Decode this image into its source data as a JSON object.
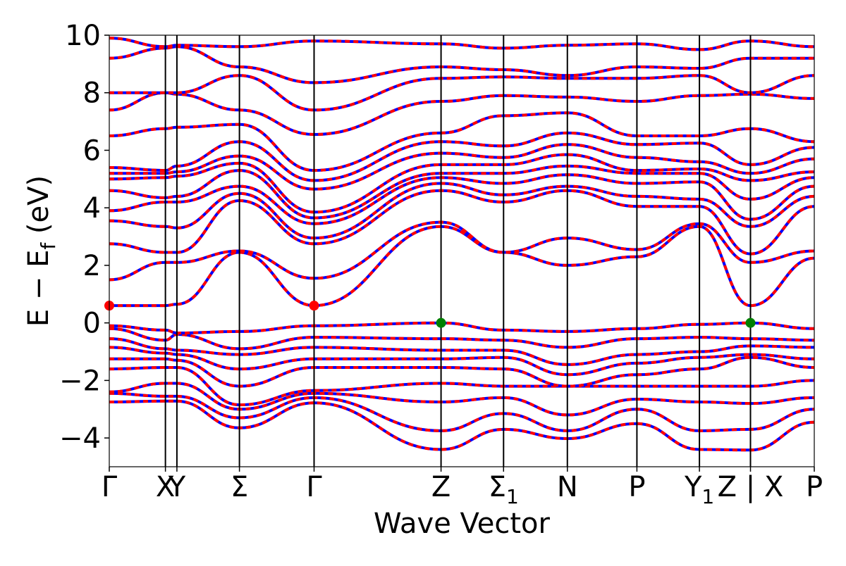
{
  "chart_data": {
    "type": "line",
    "title": "",
    "xlabel": "Wave Vector",
    "ylabel_main": "E − E",
    "ylabel_sub": "f",
    "ylabel_unit": " (eV)",
    "ylim": [
      -5,
      10
    ],
    "yticks": [
      -4,
      -2,
      0,
      2,
      4,
      6,
      8,
      10
    ],
    "ytick_labels": [
      "−4",
      "−2",
      "0",
      "2",
      "4",
      "6",
      "8",
      "10"
    ],
    "grid": false,
    "legend": "none",
    "colors": {
      "band_outer": "#ff0000",
      "band_inner": "#0000ff",
      "vbm_marker": "#008000",
      "cbm_marker": "#ff0000",
      "kline": "#000000"
    },
    "kpoints": [
      {
        "main": "Γ",
        "sub": "",
        "x": 0.0
      },
      {
        "main": "X",
        "sub": "",
        "x": 0.088
      },
      {
        "main": "Y",
        "sub": "",
        "x": 0.106
      },
      {
        "main": "Σ",
        "sub": "",
        "x": 0.204
      },
      {
        "main": "Γ",
        "sub": "",
        "x": 0.321
      },
      {
        "main": "Z",
        "sub": "",
        "x": 0.52
      },
      {
        "main": "Σ",
        "sub": "1",
        "x": 0.618
      },
      {
        "main": "N",
        "sub": "",
        "x": 0.718
      },
      {
        "main": "P",
        "sub": "",
        "x": 0.827
      },
      {
        "main": "Y",
        "sub": "1",
        "x": 0.925
      },
      {
        "main": "Z | X",
        "sub": "",
        "x": 1.005
      },
      {
        "main": "P",
        "sub": "",
        "x": 1.105
      }
    ],
    "series": [
      {
        "values": [
          -2.75,
          -2.72,
          -2.72,
          -3.65,
          -2.78,
          -4.4,
          -3.7,
          -4.02,
          -3.5,
          -4.4,
          -4.42,
          -3.45
        ]
      },
      {
        "values": [
          -2.45,
          -2.55,
          -2.55,
          -3.3,
          -2.6,
          -3.75,
          -3.15,
          -3.75,
          -3.0,
          -3.75,
          -3.7,
          -3.0
        ]
      },
      {
        "values": [
          -2.4,
          -2.1,
          -2.1,
          -3.0,
          -2.45,
          -2.75,
          -2.6,
          -3.2,
          -2.65,
          -2.75,
          -2.8,
          -2.6
        ]
      },
      {
        "values": [
          -1.6,
          -1.55,
          -1.55,
          -2.85,
          -2.35,
          -2.1,
          -2.2,
          -2.2,
          -2.2,
          -2.2,
          -2.2,
          -2.0
        ]
      },
      {
        "values": [
          -1.25,
          -1.25,
          -1.3,
          -2.2,
          -1.55,
          -1.55,
          -1.6,
          -2.2,
          -1.8,
          -1.6,
          -1.2,
          -1.55
        ]
      },
      {
        "values": [
          -0.85,
          -1.05,
          -1.1,
          -1.6,
          -1.25,
          -1.25,
          -1.2,
          -1.8,
          -1.4,
          -1.2,
          -1.1,
          -1.25
        ]
      },
      {
        "values": [
          -0.55,
          -0.9,
          -0.95,
          -1.1,
          -0.85,
          -0.95,
          -0.95,
          -1.45,
          -1.1,
          -1.0,
          -0.8,
          -0.85
        ]
      },
      {
        "values": [
          -0.2,
          -0.6,
          -0.4,
          -0.9,
          -0.5,
          -0.55,
          -0.6,
          -0.85,
          -0.55,
          -0.5,
          -0.55,
          -0.6
        ]
      },
      {
        "values": [
          -0.1,
          -0.25,
          -0.35,
          -0.3,
          -0.1,
          0.0,
          -0.25,
          -0.3,
          -0.2,
          -0.05,
          0.0,
          -0.2
        ]
      },
      {
        "values": [
          0.6,
          0.6,
          0.65,
          2.45,
          0.6,
          3.35,
          2.45,
          2.0,
          2.3,
          3.35,
          0.6,
          2.25
        ]
      },
      {
        "values": [
          1.5,
          2.1,
          2.1,
          2.5,
          1.55,
          3.5,
          2.45,
          2.95,
          2.55,
          3.45,
          2.1,
          2.5
        ]
      },
      {
        "values": [
          2.75,
          2.45,
          2.45,
          4.25,
          2.75,
          4.6,
          4.2,
          4.6,
          4.05,
          4.05,
          2.4,
          4.05
        ]
      },
      {
        "values": [
          3.55,
          3.35,
          3.3,
          4.5,
          2.95,
          4.85,
          4.45,
          4.75,
          4.4,
          4.3,
          3.35,
          4.4
        ]
      },
      {
        "values": [
          3.9,
          4.2,
          4.2,
          4.75,
          3.45,
          5.05,
          4.85,
          5.15,
          4.85,
          4.9,
          3.6,
          4.75
        ]
      },
      {
        "values": [
          4.6,
          4.35,
          4.4,
          5.3,
          3.65,
          5.2,
          5.2,
          5.45,
          5.2,
          5.2,
          4.3,
          5.05
        ]
      },
      {
        "values": [
          5.0,
          5.05,
          5.1,
          5.55,
          3.85,
          5.5,
          5.5,
          5.85,
          5.3,
          5.35,
          4.95,
          5.25
        ]
      },
      {
        "values": [
          5.2,
          5.2,
          5.25,
          5.8,
          4.65,
          5.9,
          5.75,
          6.2,
          5.75,
          5.6,
          5.2,
          5.7
        ]
      },
      {
        "values": [
          5.4,
          5.3,
          5.45,
          6.3,
          4.95,
          6.3,
          6.15,
          6.6,
          6.2,
          6.25,
          5.5,
          6.1
        ]
      },
      {
        "values": [
          6.5,
          6.75,
          6.8,
          6.9,
          5.3,
          6.6,
          7.2,
          7.3,
          6.5,
          6.5,
          6.75,
          6.3
        ]
      },
      {
        "values": [
          7.4,
          8.0,
          7.95,
          7.4,
          6.55,
          7.7,
          7.9,
          7.85,
          7.7,
          7.9,
          7.95,
          7.8
        ]
      },
      {
        "values": [
          8.0,
          8.0,
          8.0,
          8.6,
          7.4,
          8.5,
          8.55,
          8.5,
          8.5,
          8.6,
          8.0,
          8.6
        ]
      },
      {
        "values": [
          9.2,
          9.55,
          9.6,
          8.9,
          8.35,
          8.9,
          8.8,
          8.6,
          8.9,
          8.85,
          9.2,
          9.2
        ]
      },
      {
        "values": [
          9.9,
          9.6,
          9.65,
          9.6,
          9.8,
          9.7,
          9.55,
          9.65,
          9.7,
          9.5,
          9.8,
          9.6
        ]
      }
    ],
    "markers": [
      {
        "x": 0.0,
        "y": 0.6,
        "color": "#ff0000"
      },
      {
        "x": 0.321,
        "y": 0.6,
        "color": "#ff0000"
      },
      {
        "x": 0.52,
        "y": 0.0,
        "color": "#008000"
      },
      {
        "x": 1.005,
        "y": 0.0,
        "color": "#008000"
      }
    ]
  }
}
